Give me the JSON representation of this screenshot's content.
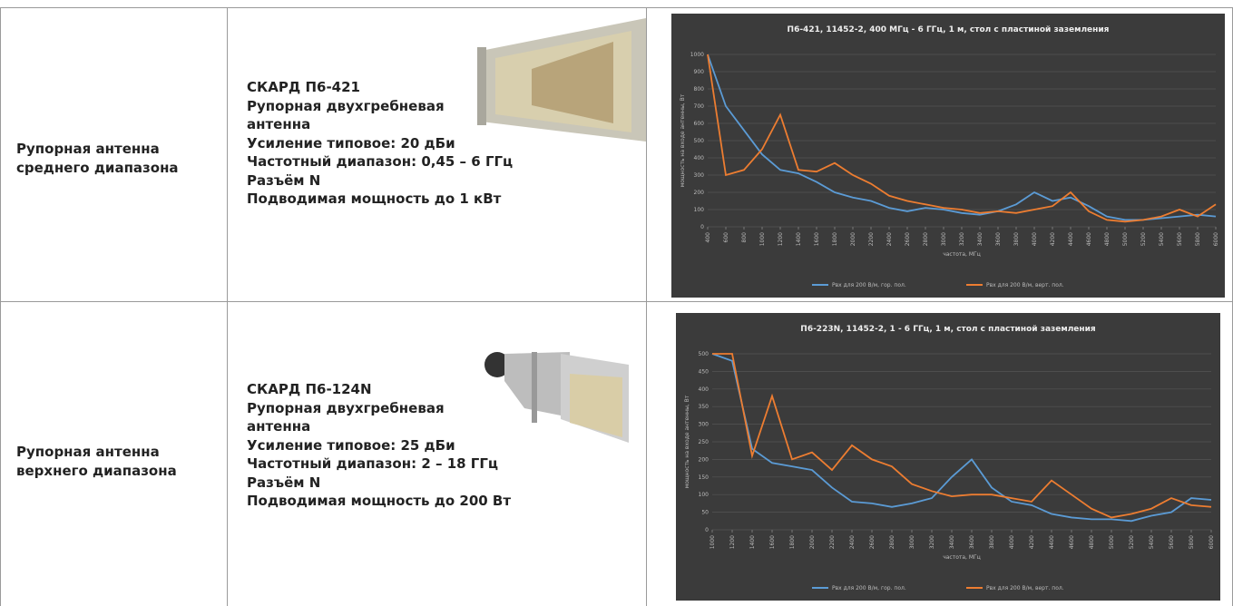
{
  "table": {
    "rows": [
      {
        "name": "Рупорная антенна среднего диапазона",
        "specs": [
          "СКАРД П6-421",
          "Рупорная двухгребневая антенна",
          "Усиление типовое: 20 дБи",
          "Частотный диапазон: 0,45 – 6 ГГц",
          "Разъём N",
          "Подводимая мощность до 1 кВт"
        ]
      },
      {
        "name": "Рупорная антенна верхнего диапазона",
        "specs": [
          "СКАРД П6-124N",
          "Рупорная двухгребневая антенна",
          "Усиление типовое: 25 дБи",
          "Частотный диапазон: 2 – 18 ГГц",
          "Разъём N",
          "Подводимая мощность до 200 Вт"
        ]
      }
    ]
  },
  "chart_data": [
    {
      "type": "line",
      "title": "П6-421, 11452-2, 400 МГц - 6 ГГц, 1 м, стол с пластиной заземления",
      "x_label": "частота, МГц",
      "y_label": "мощность на входе антенны, Вт",
      "x": [
        400,
        600,
        800,
        1000,
        1200,
        1400,
        1600,
        1800,
        2000,
        2200,
        2400,
        2600,
        2800,
        3000,
        3200,
        3400,
        3600,
        3800,
        4000,
        4200,
        4400,
        4600,
        4800,
        5000,
        5200,
        5400,
        5600,
        5800,
        6000
      ],
      "xlim": [
        400,
        6000
      ],
      "xticks": [
        400,
        600,
        800,
        1000,
        1200,
        1400,
        1600,
        1800,
        2000,
        2200,
        2400,
        2600,
        2800,
        3000,
        3200,
        3400,
        3600,
        3800,
        4000,
        4200,
        4400,
        4600,
        4800,
        5000,
        5200,
        5400,
        5600,
        5800,
        6000
      ],
      "ylim": [
        0,
        1000
      ],
      "yticks": [
        0,
        100,
        200,
        300,
        400,
        500,
        600,
        700,
        800,
        900,
        1000
      ],
      "grid": true,
      "series": [
        {
          "name": "Pвх для 200 В/м, гор. пол.",
          "color": "#5b9bd5",
          "values": [
            1000,
            700,
            560,
            420,
            330,
            310,
            260,
            200,
            170,
            150,
            110,
            90,
            110,
            100,
            80,
            70,
            90,
            130,
            200,
            150,
            170,
            120,
            60,
            40,
            40,
            50,
            60,
            70,
            60
          ]
        },
        {
          "name": "Pвх для 200 В/м, верт. пол.",
          "color": "#ed7d31",
          "values": [
            1000,
            300,
            330,
            450,
            650,
            330,
            320,
            370,
            300,
            250,
            180,
            150,
            130,
            110,
            100,
            80,
            90,
            80,
            100,
            120,
            200,
            90,
            40,
            30,
            40,
            60,
            100,
            60,
            130
          ]
        }
      ]
    },
    {
      "type": "line",
      "title": "П6-223N, 11452-2, 1 - 6 ГГц, 1 м, стол с пластиной заземления",
      "x_label": "частота, МГц",
      "y_label": "мощность на входе антенны, Вт",
      "x": [
        1000,
        1200,
        1400,
        1600,
        1800,
        2000,
        2200,
        2400,
        2600,
        2800,
        3000,
        3200,
        3400,
        3600,
        3800,
        4000,
        4200,
        4400,
        4600,
        4800,
        5000,
        5200,
        5400,
        5600,
        5800,
        6000
      ],
      "xlim": [
        1000,
        6000
      ],
      "xticks": [
        1000,
        1200,
        1400,
        1600,
        1800,
        2000,
        2200,
        2400,
        2600,
        2800,
        3000,
        3200,
        3400,
        3600,
        3800,
        4000,
        4200,
        4400,
        4600,
        4800,
        5000,
        5200,
        5400,
        5600,
        5800,
        6000
      ],
      "ylim": [
        0,
        500
      ],
      "yticks": [
        0,
        50,
        100,
        150,
        200,
        250,
        300,
        350,
        400,
        450,
        500
      ],
      "grid": true,
      "series": [
        {
          "name": "Pвх для 200 В/м, гор. пол.",
          "color": "#5b9bd5",
          "values": [
            500,
            480,
            230,
            190,
            180,
            170,
            120,
            80,
            75,
            65,
            75,
            90,
            150,
            200,
            120,
            80,
            70,
            45,
            35,
            30,
            30,
            25,
            40,
            50,
            90,
            85
          ]
        },
        {
          "name": "Pвх для 200 В/м, верт. пол.",
          "color": "#ed7d31",
          "values": [
            500,
            500,
            210,
            380,
            200,
            220,
            170,
            240,
            200,
            180,
            130,
            110,
            95,
            100,
            100,
            90,
            80,
            140,
            100,
            60,
            35,
            45,
            60,
            90,
            70,
            65
          ]
        }
      ]
    }
  ]
}
